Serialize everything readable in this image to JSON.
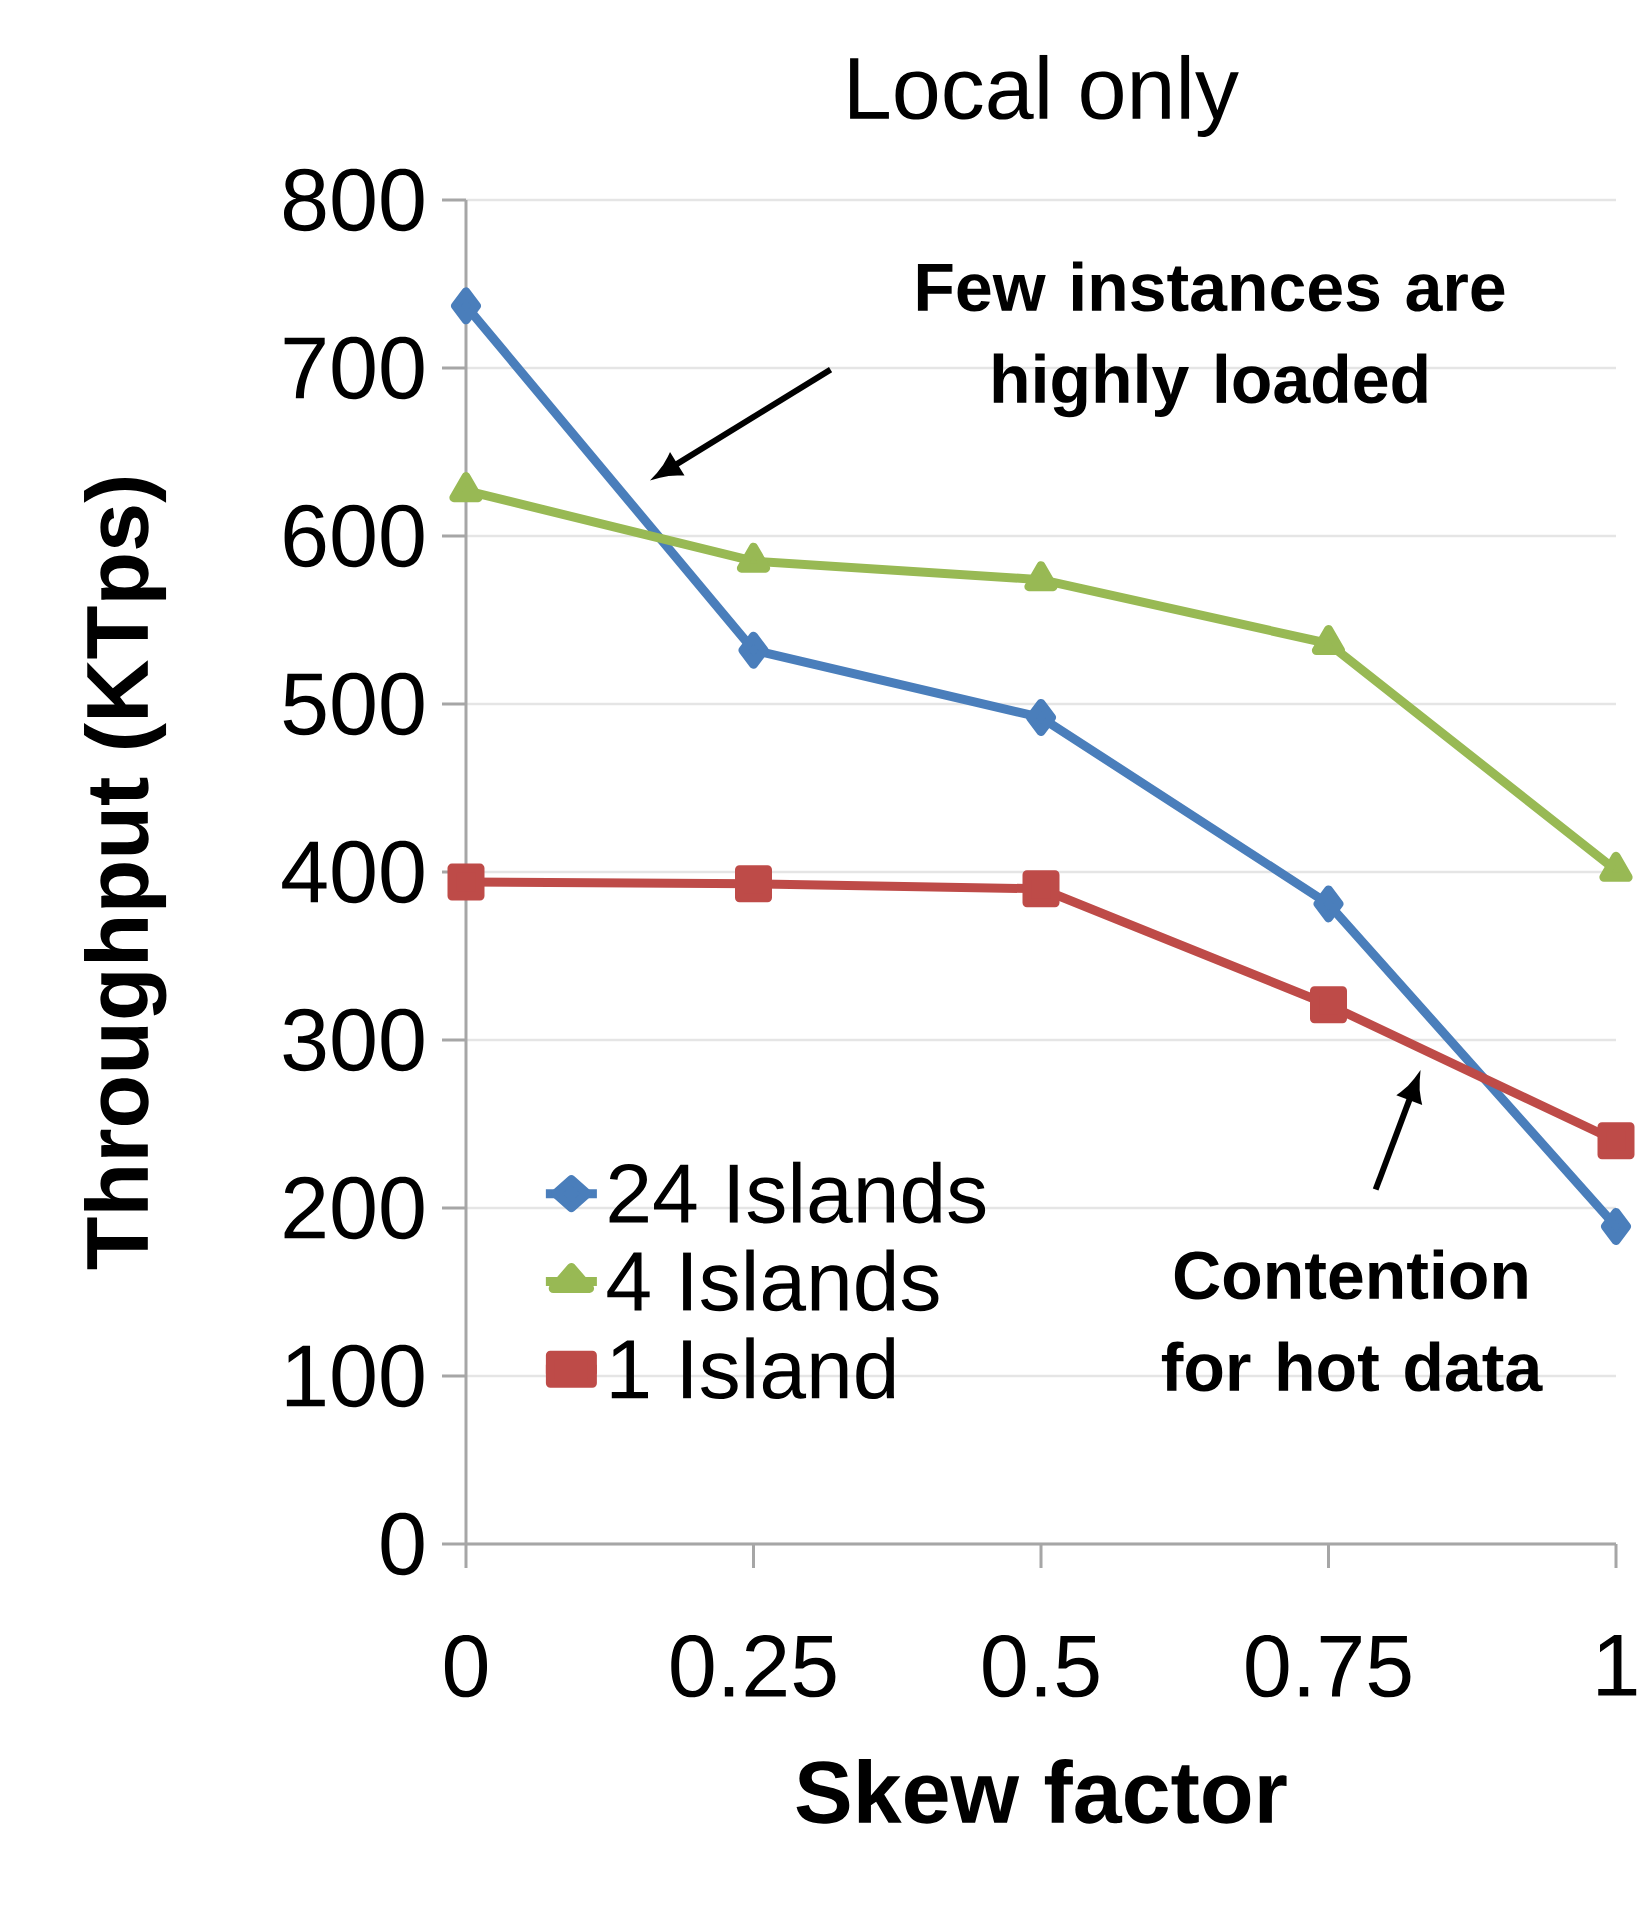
{
  "chart_data": {
    "type": "line",
    "title": "Local only",
    "xlabel": "Skew factor",
    "ylabel": "Throughput (KTps)",
    "x": [
      0,
      0.25,
      0.5,
      0.75,
      1
    ],
    "series": [
      {
        "name": "24 Islands",
        "color": "#4a7ebb",
        "marker": "diamond",
        "values": [
          737,
          532,
          492,
          381,
          189
        ]
      },
      {
        "name": "4 Islands",
        "color": "#98b954",
        "marker": "triangle",
        "values": [
          627,
          585,
          574,
          536,
          401
        ]
      },
      {
        "name": "1 Island",
        "color": "#be4b48",
        "marker": "square",
        "values": [
          394,
          393,
          390,
          321,
          240
        ]
      }
    ],
    "xlim": [
      0,
      1
    ],
    "xticks": [
      0,
      0.25,
      0.5,
      0.75,
      1
    ],
    "ylim": [
      0,
      800
    ],
    "yticks": [
      0,
      100,
      200,
      300,
      400,
      500,
      600,
      700,
      800
    ],
    "grid": "y",
    "legend": "bottom left",
    "annotations": [
      "Few instances are highly loaded",
      "Contention for hot data"
    ]
  }
}
